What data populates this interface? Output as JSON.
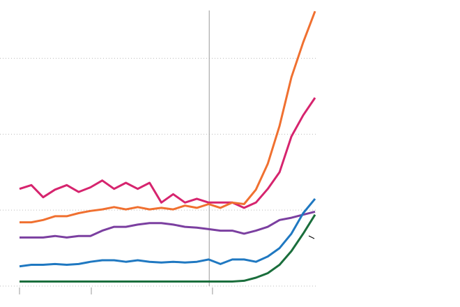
{
  "chart_data": {
    "type": "line",
    "x": [
      0,
      4,
      8,
      12,
      16,
      20,
      24,
      28,
      32,
      36,
      40,
      44,
      48,
      52,
      56,
      60,
      64,
      68,
      72,
      76,
      80,
      84,
      88,
      92,
      96,
      100
    ],
    "xlim": [
      0,
      100
    ],
    "xticks": [
      0,
      24.3,
      65.3
    ],
    "vline": 64.2,
    "ylim": [
      0,
      3.63
    ],
    "yticks": [
      0,
      1,
      2,
      3
    ],
    "grid": true,
    "series": [
      {
        "color": "#d6246e",
        "values": [
          1.28,
          1.33,
          1.17,
          1.27,
          1.33,
          1.24,
          1.3,
          1.39,
          1.28,
          1.36,
          1.28,
          1.36,
          1.1,
          1.21,
          1.1,
          1.15,
          1.1,
          1.1,
          1.1,
          1.03,
          1.1,
          1.28,
          1.5,
          1.97,
          2.25,
          2.48
        ]
      },
      {
        "color": "#f07030",
        "values": [
          0.84,
          0.84,
          0.87,
          0.92,
          0.92,
          0.96,
          0.99,
          1.01,
          1.04,
          1.01,
          1.04,
          1.01,
          1.03,
          1.01,
          1.06,
          1.03,
          1.08,
          1.03,
          1.1,
          1.08,
          1.27,
          1.61,
          2.11,
          2.75,
          3.21,
          3.62
        ]
      },
      {
        "color": "#7b3fa0",
        "values": [
          0.64,
          0.64,
          0.64,
          0.66,
          0.64,
          0.66,
          0.66,
          0.73,
          0.78,
          0.78,
          0.81,
          0.83,
          0.83,
          0.81,
          0.78,
          0.77,
          0.75,
          0.73,
          0.73,
          0.69,
          0.73,
          0.78,
          0.87,
          0.9,
          0.94,
          0.98
        ]
      },
      {
        "color": "#1f78c1",
        "values": [
          0.26,
          0.28,
          0.28,
          0.29,
          0.28,
          0.29,
          0.32,
          0.34,
          0.34,
          0.32,
          0.34,
          0.32,
          0.31,
          0.32,
          0.31,
          0.32,
          0.35,
          0.29,
          0.35,
          0.35,
          0.32,
          0.39,
          0.5,
          0.69,
          0.96,
          1.15
        ]
      },
      {
        "color": "#1a6e3c",
        "values": [
          0.06,
          0.06,
          0.06,
          0.06,
          0.06,
          0.06,
          0.06,
          0.06,
          0.06,
          0.06,
          0.06,
          0.06,
          0.06,
          0.06,
          0.06,
          0.06,
          0.06,
          0.06,
          0.06,
          0.07,
          0.11,
          0.17,
          0.28,
          0.46,
          0.69,
          0.94
        ]
      }
    ]
  }
}
